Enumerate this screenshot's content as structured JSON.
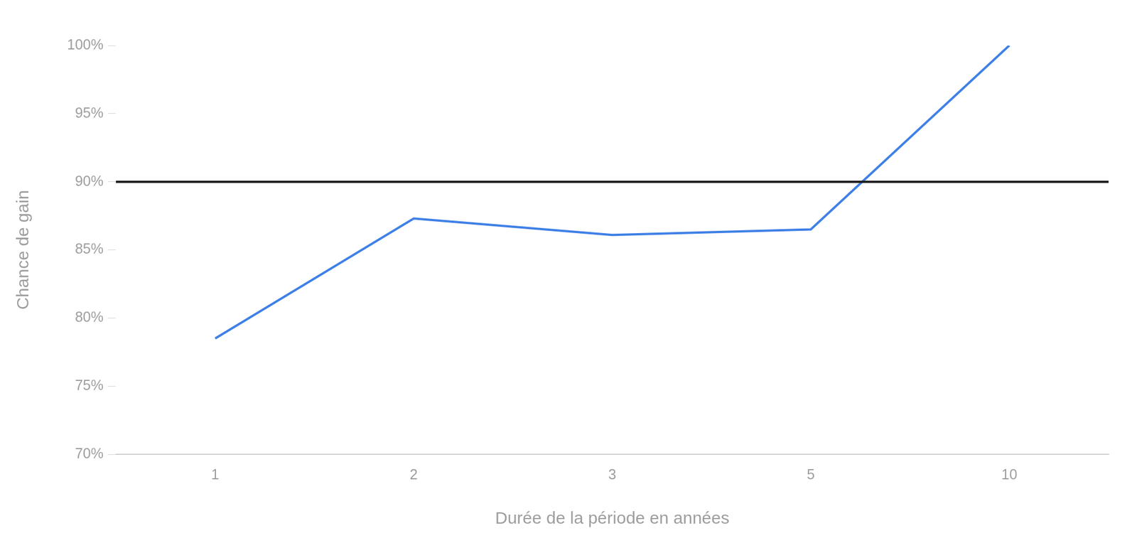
{
  "chart_data": {
    "type": "line",
    "x_label": "Durée de la période en années",
    "y_label": "Chance de gain",
    "categories": [
      "1",
      "2",
      "3",
      "5",
      "10"
    ],
    "values": [
      78.5,
      87.3,
      86.1,
      86.5,
      100
    ],
    "color": "#3f80e6",
    "ylim": [
      70,
      100
    ],
    "yticks": [
      {
        "value": 70,
        "label": "70%"
      },
      {
        "value": 75,
        "label": "75%"
      },
      {
        "value": 80,
        "label": "80%"
      },
      {
        "value": 85,
        "label": "85%"
      },
      {
        "value": 90,
        "label": "90%"
      },
      {
        "value": 95,
        "label": "95%"
      },
      {
        "value": 100,
        "label": "100%"
      }
    ],
    "reference_line": {
      "value": 90,
      "color": "#1a1a1a"
    },
    "grid": false
  }
}
